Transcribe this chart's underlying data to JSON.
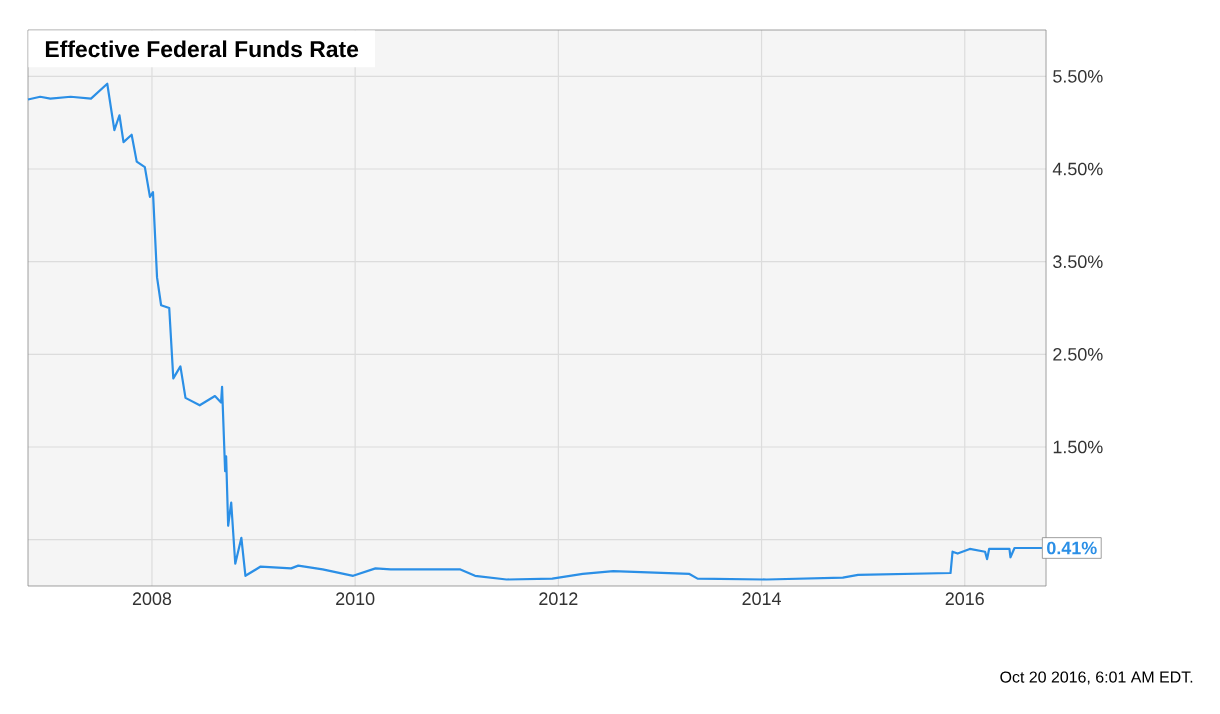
{
  "chart_data": {
    "type": "line",
    "title": "Effective Federal Funds Rate",
    "x": [
      2006.78,
      2006.9,
      2007.0,
      2007.2,
      2007.4,
      2007.56,
      2007.63,
      2007.68,
      2007.72,
      2007.8,
      2007.85,
      2007.93,
      2007.98,
      2008.01,
      2008.05,
      2008.09,
      2008.17,
      2008.21,
      2008.28,
      2008.33,
      2008.47,
      2008.62,
      2008.68,
      2008.69,
      2008.72,
      2008.73,
      2008.75,
      2008.78,
      2008.82,
      2008.88,
      2008.92,
      2009.07,
      2009.37,
      2009.44,
      2009.68,
      2009.98,
      2010.2,
      2010.35,
      2011.03,
      2011.18,
      2011.49,
      2011.94,
      2012.24,
      2012.54,
      2013.29,
      2013.37,
      2014.05,
      2014.8,
      2014.95,
      2015.86,
      2015.88,
      2015.93,
      2016.05,
      2016.2,
      2016.22,
      2016.24,
      2016.44,
      2016.45,
      2016.49,
      2016.76
    ],
    "series": [
      {
        "color": "#2b8fe6",
        "values": [
          5.25,
          5.28,
          5.26,
          5.28,
          5.26,
          5.42,
          4.92,
          5.08,
          4.79,
          4.87,
          4.58,
          4.52,
          4.2,
          4.25,
          3.33,
          3.03,
          3.0,
          2.24,
          2.37,
          2.03,
          1.95,
          2.05,
          1.98,
          2.15,
          1.24,
          1.4,
          0.65,
          0.9,
          0.24,
          0.52,
          0.11,
          0.21,
          0.19,
          0.22,
          0.18,
          0.11,
          0.19,
          0.18,
          0.18,
          0.11,
          0.07,
          0.08,
          0.13,
          0.16,
          0.13,
          0.08,
          0.07,
          0.09,
          0.12,
          0.14,
          0.37,
          0.35,
          0.4,
          0.37,
          0.29,
          0.4,
          0.4,
          0.31,
          0.41,
          0.41
        ]
      }
    ],
    "xlim": [
      2006.78,
      2016.8
    ],
    "xticks": [
      2008,
      2010,
      2012,
      2014,
      2016
    ],
    "ylim": [
      0,
      6
    ],
    "yticks": [
      {
        "value": 0.5,
        "label": null
      },
      {
        "value": 1.5,
        "label": "1.50%"
      },
      {
        "value": 2.5,
        "label": "2.50%"
      },
      {
        "value": 3.5,
        "label": "3.50%"
      },
      {
        "value": 4.5,
        "label": "4.50%"
      },
      {
        "value": 5.5,
        "label": "5.50%"
      }
    ],
    "grid": true,
    "legend": false,
    "marker": "none",
    "line_style": "solid",
    "annotations": [
      {
        "text": "0.41%",
        "x": 2016.76,
        "y": 0.41
      },
      "Oct 20 2016, 6:01 AM EDT."
    ]
  }
}
